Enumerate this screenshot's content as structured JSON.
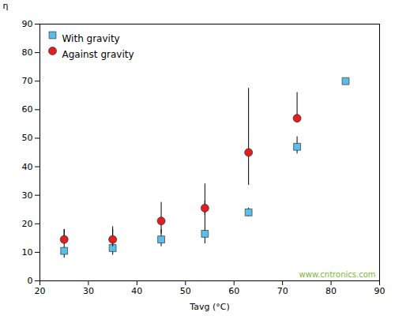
{
  "chart_data": {
    "type": "scatter",
    "x_label": "Tavg (°C)",
    "y_label": "η",
    "xlim": [
      20,
      90
    ],
    "ylim": [
      0,
      90
    ],
    "xticks": [
      20,
      30,
      40,
      50,
      60,
      70,
      80,
      90
    ],
    "yticks": [
      0,
      10,
      20,
      30,
      40,
      50,
      60,
      70,
      80,
      90
    ],
    "grid": false,
    "legend": "upper left",
    "series": [
      {
        "name": "With gravity",
        "color": "#5bbde8",
        "marker": "square",
        "x": [
          25,
          35,
          45,
          54,
          63,
          73,
          83
        ],
        "values": [
          10.5,
          11.5,
          14.5,
          16.5,
          24,
          47,
          70
        ],
        "error_low": [
          2.5,
          2.5,
          2.5,
          3.5,
          1.5,
          2.5,
          0.5
        ],
        "error_high": [
          7.5,
          6.5,
          3.5,
          11.5,
          1.5,
          3.5,
          0.5
        ]
      },
      {
        "name": "Against gravity",
        "color": "#e02020",
        "marker": "circle",
        "x": [
          25,
          35,
          45,
          54,
          63,
          73
        ],
        "values": [
          14.5,
          14.5,
          21,
          25.5,
          45,
          57
        ],
        "error_low": [
          1.5,
          2.5,
          4.5,
          2.5,
          11.5,
          1.5
        ],
        "error_high": [
          3.5,
          4.5,
          6.5,
          8.5,
          22.5,
          9.0
        ]
      }
    ],
    "annotations": [
      {
        "text": "www.cntronics.com",
        "color": "#7ab830"
      }
    ]
  }
}
